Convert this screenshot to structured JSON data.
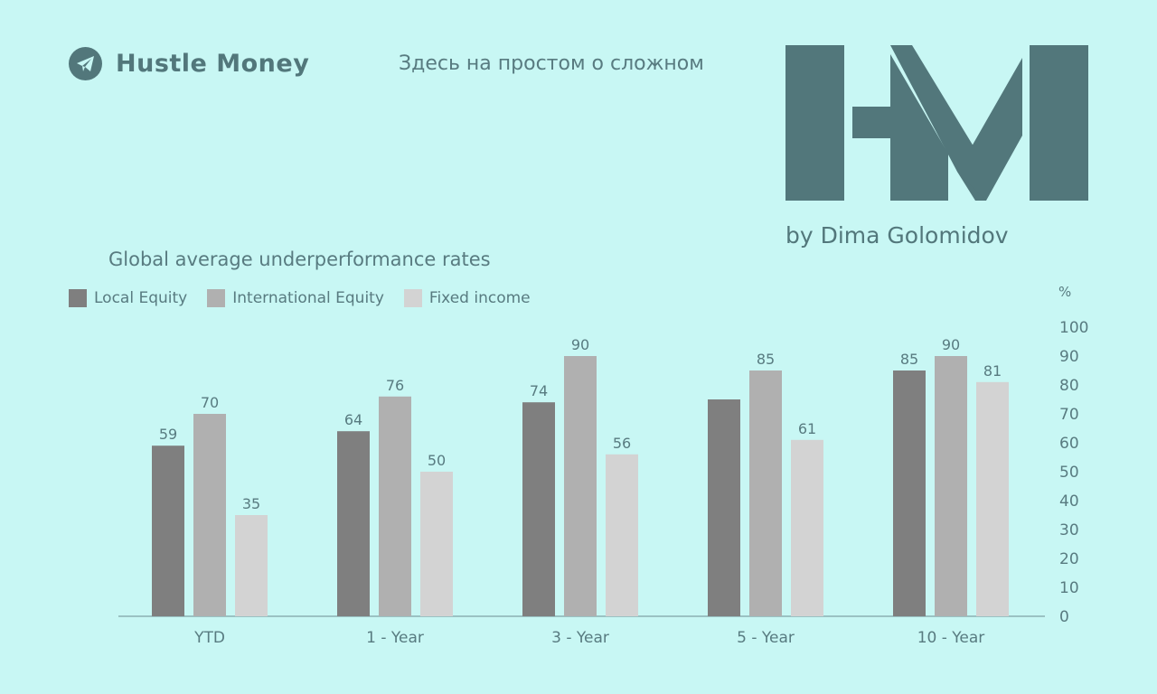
{
  "header": {
    "brand_name": "Hustle Money",
    "tagline": "Здесь на простом о сложном",
    "byline": "by Dima Golomidov",
    "icons": {
      "telegram": "telegram-icon",
      "logo": "hm-logo"
    }
  },
  "colors": {
    "background": "#c8f7f4",
    "brand": "#52777b",
    "local_equity": "#7f7f7f",
    "international_equity": "#b0b0b0",
    "fixed_income": "#d3d3d3"
  },
  "chart_data": {
    "type": "bar",
    "title": "Global average underperformance rates",
    "unit": "%",
    "categories": [
      "YTD",
      "1 - Year",
      "3 - Year",
      "5 - Year",
      "10 - Year"
    ],
    "series": [
      {
        "name": "Local Equity",
        "color": "#7f7f7f",
        "values": [
          59,
          64,
          74,
          75,
          85
        ],
        "labels": [
          "59",
          "64",
          "74",
          "",
          "85"
        ]
      },
      {
        "name": "International Equity",
        "color": "#b0b0b0",
        "values": [
          70,
          76,
          90,
          85,
          90
        ],
        "labels": [
          "70",
          "76",
          "90",
          "85",
          "90"
        ]
      },
      {
        "name": "Fixed income",
        "color": "#d3d3d3",
        "values": [
          35,
          50,
          56,
          61,
          81
        ],
        "labels": [
          "35",
          "50",
          "56",
          "61",
          "81"
        ]
      }
    ],
    "ylim": [
      0,
      100
    ],
    "yticks": [
      "0",
      "10",
      "20",
      "30",
      "40",
      "50",
      "60",
      "70",
      "80",
      "90",
      "100"
    ],
    "y_axis_position": "right",
    "grid": false,
    "legend_position": "top-left"
  }
}
